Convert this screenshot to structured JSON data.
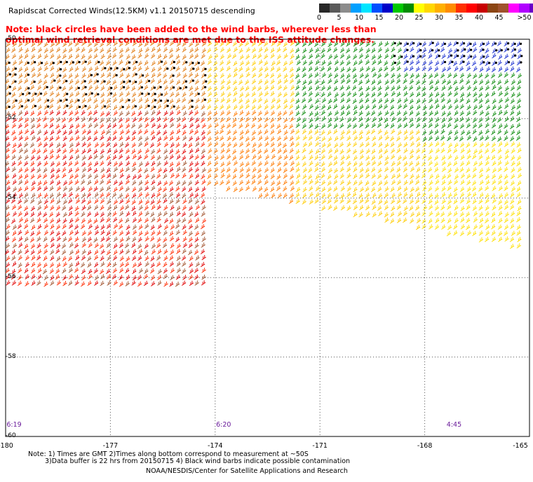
{
  "title": "Rapidscat Corrected Winds(12.5KM) v1.1 20150715 descending",
  "note": {
    "line1": "Note: black circles have been added to the wind barbs, wherever less than",
    "line2": "optimal wind retrieval conditions are met due to the ISS attitude changes."
  },
  "colorbar": {
    "colors": [
      "#282828",
      "#5a5a5a",
      "#8c8c8c",
      "#00a0ff",
      "#00e5ff",
      "#0050ff",
      "#0000c8",
      "#00c800",
      "#008c00",
      "#ffff00",
      "#ffd700",
      "#ffb000",
      "#ff8c00",
      "#ff3000",
      "#ff0000",
      "#c80000",
      "#8b4513",
      "#a0522d",
      "#ff00ff",
      "#b000ff",
      "#6a00c8"
    ],
    "ticks": [
      {
        "label": "0",
        "v": 0
      },
      {
        "label": "5",
        "v": 5
      },
      {
        "label": "10",
        "v": 10
      },
      {
        "label": "15",
        "v": 15
      },
      {
        "label": "20",
        "v": 20
      },
      {
        "label": "25",
        "v": 25
      },
      {
        "label": "30",
        "v": 30
      },
      {
        "label": "35",
        "v": 35
      },
      {
        "label": "40",
        "v": 40
      },
      {
        "label": "45",
        "v": 45
      },
      {
        "label": ">50 knots",
        "v": 50
      }
    ]
  },
  "axes": {
    "x_ticks": [
      "-180",
      "-177",
      "-174",
      "-171",
      "-168",
      "-165"
    ],
    "x_values": [
      -180,
      -177,
      -174,
      -171,
      -168,
      -165
    ],
    "y_ticks": [
      "-50",
      "-52",
      "-54",
      "-56",
      "-58",
      "-60"
    ],
    "y_values": [
      -50,
      -52,
      -54,
      -56,
      -58,
      -60
    ],
    "lon_range": [
      -180,
      -165
    ],
    "lat_range": [
      -60,
      -50
    ]
  },
  "times": [
    {
      "label": "6:19",
      "lon": -180
    },
    {
      "label": "6:20",
      "lon": -174
    },
    {
      "label": "4:45",
      "lon": -167.4
    }
  ],
  "footer": {
    "line1": "Note: 1) Times are GMT 2)Times along bottom correspond to measurement at ~50S",
    "line2": "3)Data buffer is 22 hrs from 20150715 4) Black wind barbs indicate possible contamination",
    "line3": "NOAA/NESDIS/Center for Satellite Applications and Research"
  }
}
